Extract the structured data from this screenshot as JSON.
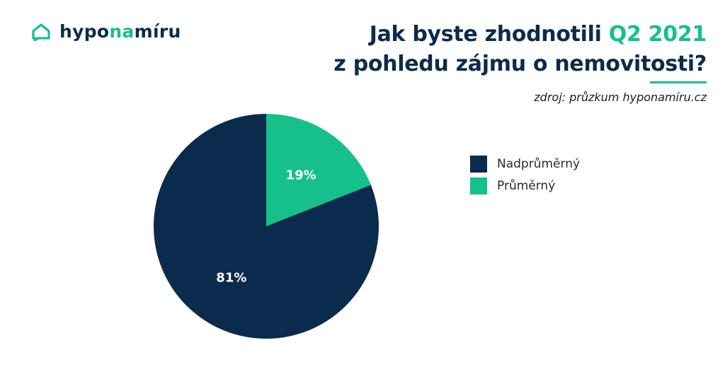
{
  "brand": {
    "logo_part1": "hypo",
    "logo_part2": "na",
    "logo_part3": "míru",
    "logo_icon": "house-chat-icon",
    "primary_color": "#0b2b4c",
    "accent_color": "#16c08a"
  },
  "header": {
    "title_line1_a": "Jak byste zhodnotili ",
    "title_line1_b": "Q2 2021",
    "title_line2": "z pohledu zájmu o nemovitosti?",
    "source": "zdroj: průzkum hyponamíru.cz"
  },
  "chart_data": {
    "type": "pie",
    "title": "Jak byste zhodnotili Q2 2021 z pohledu zájmu o nemovitosti?",
    "slices": [
      {
        "label": "Průměrný",
        "value": 19,
        "display": "19%",
        "color": "#16c08a"
      },
      {
        "label": "Nadprůměrný",
        "value": 81,
        "display": "81%",
        "color": "#0b2b4c"
      }
    ],
    "start_angle_deg": 0,
    "direction": "clockwise",
    "legend": {
      "placement": "right",
      "entries": [
        {
          "label": "Nadprůměrný",
          "color": "#0b2b4c"
        },
        {
          "label": "Průměrný",
          "color": "#16c08a"
        }
      ]
    }
  }
}
